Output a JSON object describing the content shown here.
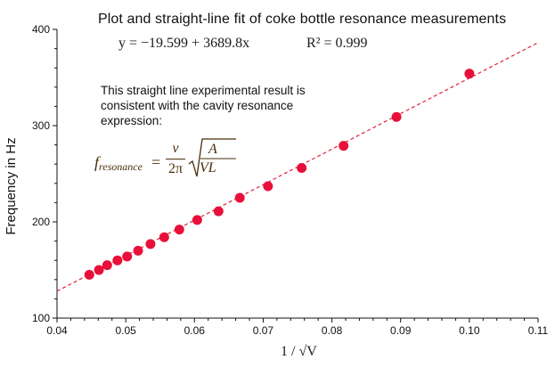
{
  "chart_data": {
    "type": "scatter",
    "title": "Plot and straight-line fit of coke bottle resonance measurements",
    "fit_equation": "y = −19.599 + 3689.8x",
    "r_squared": "R² = 0.999",
    "annotation": "This straight line experimental result is consistent with the cavity resonance expression:",
    "formula": {
      "lhs": "f",
      "lhs_sub": "resonance",
      "numerator": "v",
      "denominator": "2π",
      "radicand_top": "A",
      "radicand_bottom": "VL"
    },
    "xlabel": "1 / √V",
    "ylabel": "Frequency in Hz",
    "xlim": [
      0.04,
      0.11
    ],
    "ylim": [
      100,
      400
    ],
    "x_ticks": [
      "0.04",
      "0.05",
      "0.06",
      "0.07",
      "0.08",
      "0.09",
      "0.10",
      "0.11"
    ],
    "y_ticks": [
      "100",
      "200",
      "300",
      "400"
    ],
    "fit": {
      "intercept": -19.599,
      "slope": 3689.8,
      "style": "dashed",
      "color": "#e0203a"
    },
    "marker_color": "#e8103a",
    "points": [
      {
        "x": 0.0447,
        "y": 145
      },
      {
        "x": 0.0461,
        "y": 150
      },
      {
        "x": 0.0473,
        "y": 155
      },
      {
        "x": 0.0488,
        "y": 160
      },
      {
        "x": 0.0502,
        "y": 164
      },
      {
        "x": 0.0518,
        "y": 170
      },
      {
        "x": 0.0536,
        "y": 177
      },
      {
        "x": 0.0556,
        "y": 184
      },
      {
        "x": 0.0578,
        "y": 192
      },
      {
        "x": 0.0604,
        "y": 202
      },
      {
        "x": 0.0635,
        "y": 211
      },
      {
        "x": 0.0666,
        "y": 225
      },
      {
        "x": 0.0707,
        "y": 237
      },
      {
        "x": 0.0756,
        "y": 256
      },
      {
        "x": 0.0817,
        "y": 279
      },
      {
        "x": 0.0894,
        "y": 309
      },
      {
        "x": 0.1,
        "y": 354
      }
    ]
  }
}
